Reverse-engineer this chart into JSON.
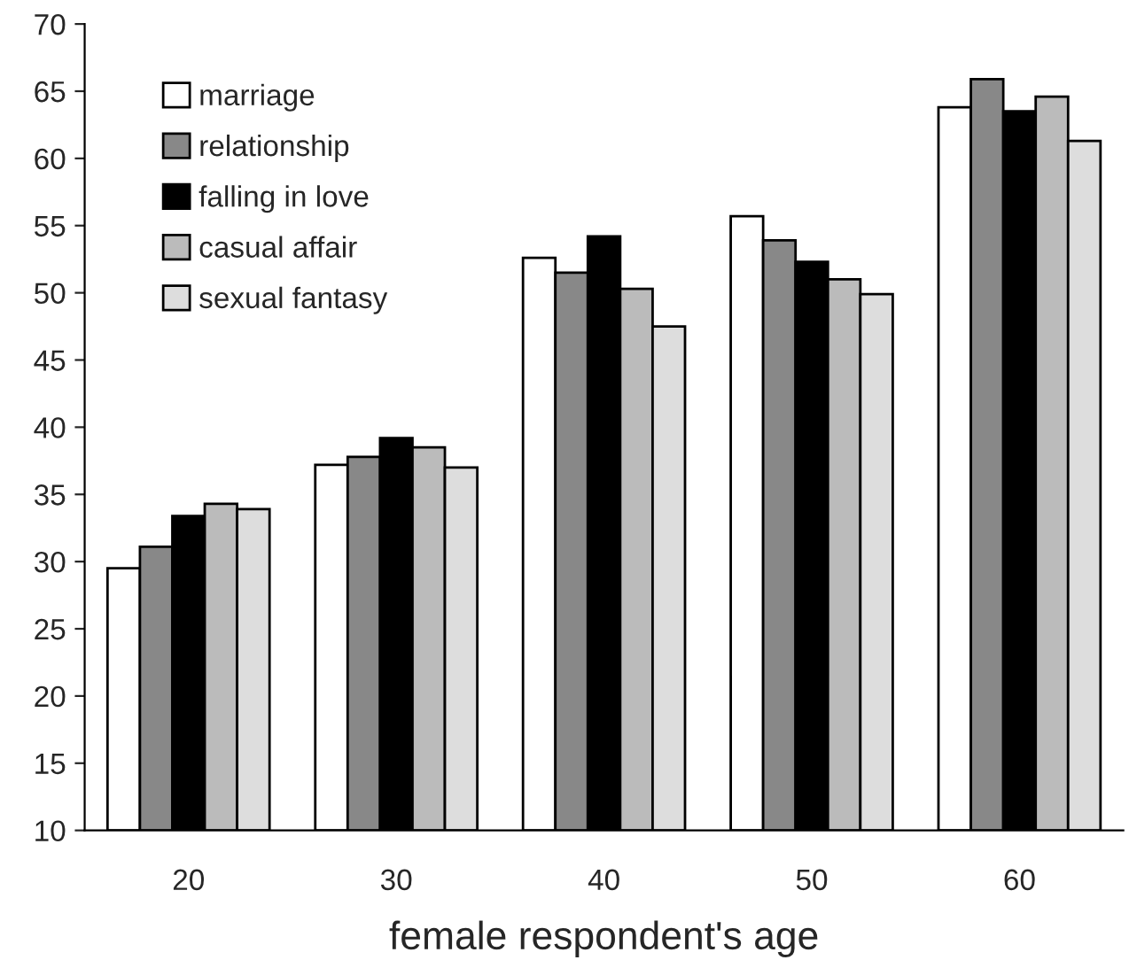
{
  "chart_data": {
    "type": "bar",
    "xlabel": "female respondent's age",
    "categories": [
      "20",
      "30",
      "40",
      "50",
      "60"
    ],
    "series": [
      {
        "name": "marriage",
        "color": "#ffffff",
        "values": [
          29.5,
          37.2,
          52.6,
          55.7,
          63.8
        ]
      },
      {
        "name": "relationship",
        "color": "#888888",
        "values": [
          31.1,
          37.8,
          51.5,
          53.9,
          65.9
        ]
      },
      {
        "name": "falling in love",
        "color": "#000000",
        "values": [
          33.4,
          39.2,
          54.2,
          52.3,
          63.5
        ]
      },
      {
        "name": "casual affair",
        "color": "#bbbbbb",
        "values": [
          34.3,
          38.5,
          50.3,
          51.0,
          64.6
        ]
      },
      {
        "name": "sexual fantasy",
        "color": "#dddddd",
        "values": [
          33.9,
          37.0,
          47.5,
          49.9,
          61.3
        ]
      }
    ],
    "ylim": [
      10,
      70
    ],
    "yticks": [
      10,
      15,
      20,
      25,
      30,
      35,
      40,
      45,
      50,
      55,
      60,
      65,
      70
    ],
    "grid": false,
    "legend": "top left"
  }
}
